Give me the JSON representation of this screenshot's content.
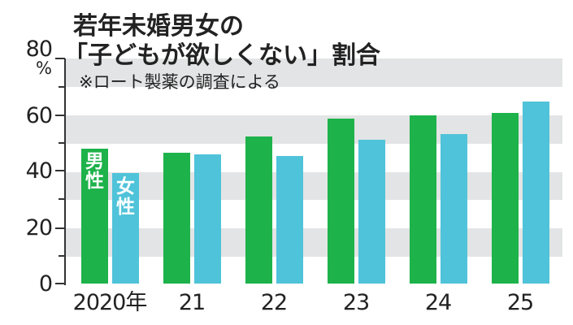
{
  "header": {
    "title_line1": "若年未婚男女の",
    "title_line2": "「子どもが欲しくない」割合",
    "note": "※ロート製薬の調査による"
  },
  "axis": {
    "unit": "%",
    "y_ticks": [
      "80",
      "60",
      "40",
      "20",
      "0"
    ]
  },
  "legend": {
    "male": "男性",
    "female": "女性",
    "male_v1": "男",
    "male_v2": "性",
    "female_v1": "女",
    "female_v2": "性"
  },
  "x_labels": [
    "2020年",
    "21",
    "22",
    "23",
    "24",
    "25"
  ],
  "colors": {
    "male": "#1db24a",
    "female": "#4fc3d9",
    "band": "#e3e4e5"
  },
  "chart_data": {
    "type": "bar",
    "title": "若年未婚男女の「子どもが欲しくない」割合",
    "subtitle": "※ロート製薬の調査による",
    "categories": [
      "2020",
      "2021",
      "2022",
      "2023",
      "2024",
      "2025"
    ],
    "series": [
      {
        "name": "男性",
        "values": [
          48.7,
          47.2,
          53.1,
          59.5,
          60.7,
          61.6
        ]
      },
      {
        "name": "女性",
        "values": [
          39.9,
          46.6,
          46.0,
          51.9,
          54.0,
          65.7
        ]
      }
    ],
    "xlabel": "",
    "ylabel": "%",
    "ylim": [
      0,
      80
    ],
    "y_ticks": [
      0,
      20,
      40,
      60,
      80
    ],
    "grid": "alternating horizontal bands every 10%",
    "legend_position": "inside first bars"
  }
}
